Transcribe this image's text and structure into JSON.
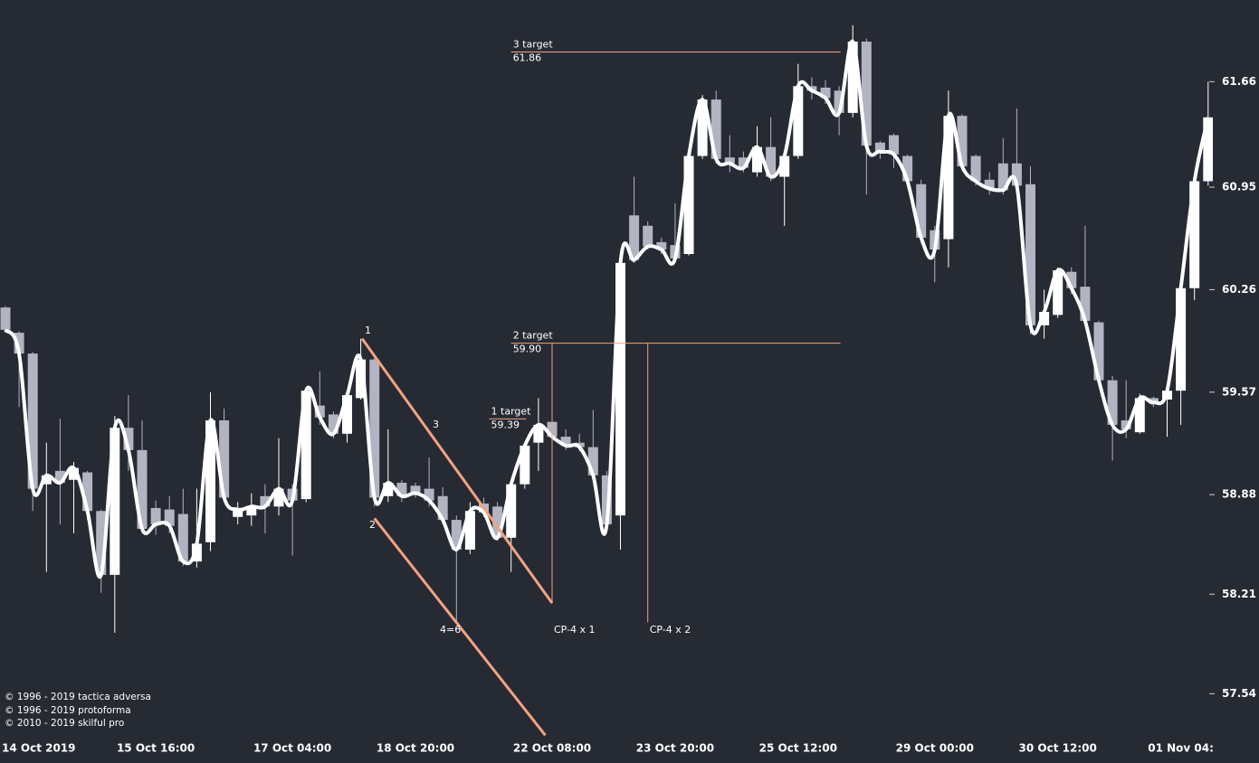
{
  "chart_data": {
    "type": "candlestick",
    "categories": [
      null,
      null,
      "14 Oct 2019",
      null,
      null,
      null,
      null,
      null,
      null,
      null,
      null,
      "15 Oct 16:00",
      null,
      null,
      null,
      null,
      null,
      null,
      null,
      null,
      null,
      "17 Oct 04:00",
      null,
      null,
      null,
      null,
      null,
      null,
      null,
      null,
      "18 Oct 20:00",
      null,
      null,
      null,
      null,
      null,
      null,
      null,
      null,
      null,
      "22 Oct 08:00",
      null,
      null,
      null,
      null,
      null,
      null,
      null,
      null,
      "23 Oct 20:00",
      null,
      null,
      null,
      null,
      null,
      null,
      null,
      null,
      "25 Oct 12:00",
      null,
      null,
      null,
      null,
      null,
      null,
      null,
      null,
      null,
      "29 Oct 00:00",
      null,
      null,
      null,
      null,
      null,
      null,
      null,
      null,
      "30 Oct 12:00",
      null,
      null,
      null,
      null,
      null,
      null,
      null,
      null,
      "01 Nov 04:",
      null,
      null
    ],
    "open": [
      60.14,
      59.97,
      59.83,
      58.95,
      59.04,
      58.98,
      59.03,
      58.77,
      58.34,
      59.33,
      59.18,
      58.79,
      58.78,
      58.75,
      58.43,
      58.56,
      59.38,
      58.73,
      58.74,
      58.87,
      58.8,
      58.92,
      58.85,
      59.48,
      59.42,
      59.29,
      59.53,
      59.79,
      58.87,
      58.96,
      58.94,
      58.92,
      58.87,
      58.71,
      58.51,
      58.82,
      58.8,
      58.59,
      58.95,
      59.23,
      59.37,
      59.27,
      59.23,
      59.2,
      59.01,
      58.74,
      60.76,
      60.69,
      60.58,
      60.56,
      60.5,
      61.16,
      61.54,
      61.15,
      61.15,
      61.05,
      61.22,
      61.02,
      61.16,
      61.63,
      61.62,
      61.6,
      61.45,
      61.93,
      61.25,
      61.3,
      61.16,
      60.97,
      60.66,
      60.6,
      61.43,
      61.16,
      61.0,
      61.11,
      61.11,
      60.97,
      60.02,
      60.09,
      60.38,
      60.28,
      60.04,
      59.65,
      59.38,
      59.3,
      59.53,
      59.52,
      59.58,
      60.27,
      60.99
    ],
    "high": [
      60.15,
      59.98,
      59.84,
      59.23,
      59.39,
      59.1,
      59.04,
      58.78,
      59.41,
      59.55,
      59.38,
      58.84,
      58.87,
      58.92,
      58.92,
      59.57,
      59.46,
      58.83,
      58.89,
      58.95,
      59.26,
      58.95,
      59.59,
      59.71,
      59.44,
      59.56,
      59.93,
      59.8,
      59.32,
      58.98,
      58.96,
      59.13,
      58.93,
      58.74,
      58.83,
      58.86,
      58.83,
      58.98,
      59.23,
      59.53,
      59.42,
      59.32,
      59.29,
      59.45,
      59.04,
      60.5,
      61.02,
      60.72,
      60.61,
      60.84,
      61.17,
      61.57,
      61.6,
      61.3,
      61.19,
      61.36,
      61.42,
      61.2,
      61.78,
      61.69,
      61.67,
      61.63,
      62.04,
      61.95,
      61.26,
      61.31,
      61.17,
      61.0,
      60.69,
      61.6,
      61.44,
      61.17,
      61.05,
      61.28,
      61.48,
      61.09,
      60.26,
      60.41,
      60.41,
      60.69,
      60.05,
      59.68,
      59.65,
      59.56,
      59.54,
      59.62,
      60.29,
      61.0,
      61.66
    ],
    "low": [
      59.97,
      59.47,
      58.77,
      58.36,
      58.68,
      58.62,
      58.71,
      58.22,
      57.95,
      59.04,
      58.62,
      58.61,
      58.62,
      58.4,
      58.39,
      58.5,
      58.83,
      58.68,
      58.67,
      58.62,
      58.74,
      58.47,
      58.83,
      59.35,
      59.26,
      59.23,
      59.52,
      58.8,
      58.83,
      58.83,
      58.86,
      58.8,
      58.68,
      58.01,
      58.48,
      58.73,
      58.57,
      58.36,
      58.92,
      59.04,
      59.23,
      59.18,
      59.17,
      58.98,
      58.67,
      58.51,
      60.44,
      60.53,
      60.5,
      60.46,
      60.49,
      61.14,
      61.11,
      61.05,
      61.05,
      61.02,
      60.99,
      60.69,
      61.14,
      61.54,
      61.51,
      61.3,
      61.42,
      60.9,
      61.14,
      61.08,
      60.96,
      60.57,
      60.31,
      60.41,
      61.06,
      60.96,
      60.9,
      60.9,
      60.93,
      59.96,
      59.93,
      60.07,
      60.23,
      60.02,
      59.62,
      59.11,
      59.26,
      59.29,
      59.47,
      59.27,
      59.35,
      60.19,
      60.96
    ],
    "close": [
      59.99,
      59.83,
      58.92,
      59.01,
      58.96,
      59.06,
      58.77,
      58.34,
      59.33,
      59.18,
      58.65,
      58.68,
      58.67,
      58.43,
      58.55,
      59.38,
      58.86,
      58.78,
      58.8,
      58.8,
      58.92,
      58.84,
      59.58,
      59.4,
      59.29,
      59.55,
      59.79,
      58.86,
      58.96,
      58.87,
      58.89,
      58.84,
      58.71,
      58.51,
      58.77,
      58.76,
      58.59,
      58.95,
      59.21,
      59.35,
      59.27,
      59.21,
      59.2,
      59.01,
      58.68,
      60.44,
      60.46,
      60.55,
      60.53,
      60.47,
      61.16,
      61.54,
      61.14,
      61.11,
      61.08,
      61.22,
      61.02,
      61.16,
      61.63,
      61.6,
      61.55,
      61.45,
      61.93,
      61.23,
      61.19,
      61.17,
      60.99,
      60.61,
      60.53,
      61.43,
      61.09,
      60.99,
      60.94,
      60.93,
      60.96,
      60.02,
      60.11,
      60.39,
      60.27,
      60.05,
      59.65,
      59.35,
      59.32,
      59.53,
      59.5,
      59.58,
      60.27,
      60.99,
      61.42
    ],
    "up_color": "#ffffff",
    "down_color": "#b3b4c2",
    "line_color": "#ffffff",
    "annotation_color": "#f4a37f",
    "ylim": [
      57.25,
      62.21
    ],
    "yticks": [
      57.54,
      58.21,
      58.88,
      59.57,
      60.26,
      60.95,
      61.66
    ],
    "annotations": {
      "channel_lines": [
        {
          "x": [
            26.1,
            40
          ],
          "y": [
            59.93,
            58.15
          ]
        },
        {
          "x": [
            27,
            39.5
          ],
          "y": [
            58.72,
            57.26
          ]
        }
      ],
      "wave_labels": [
        "1",
        "2",
        "3",
        "4=6"
      ],
      "targets": [
        {
          "label": "1 target",
          "value": 59.39,
          "x": [
            35.4,
            38.1
          ]
        },
        {
          "label": "2 target",
          "value": 59.9,
          "value_label": "59.90",
          "x": [
            37,
            61.1
          ]
        },
        {
          "label": "3 target",
          "value": 61.86,
          "x": [
            37,
            61.1
          ]
        }
      ],
      "projections": [
        {
          "label": "CP-4 x 1",
          "x": 40,
          "y": [
            59.9,
            58.15
          ]
        },
        {
          "label": "CP-4 x 2",
          "x": 47,
          "y": [
            59.9,
            58.02
          ]
        }
      ]
    }
  },
  "footer": {
    "copyright": [
      "© 1996 - 2019 tactica adversa",
      "© 1996 - 2019 protoforma",
      "© 2010 - 2019 skilful pro"
    ]
  }
}
